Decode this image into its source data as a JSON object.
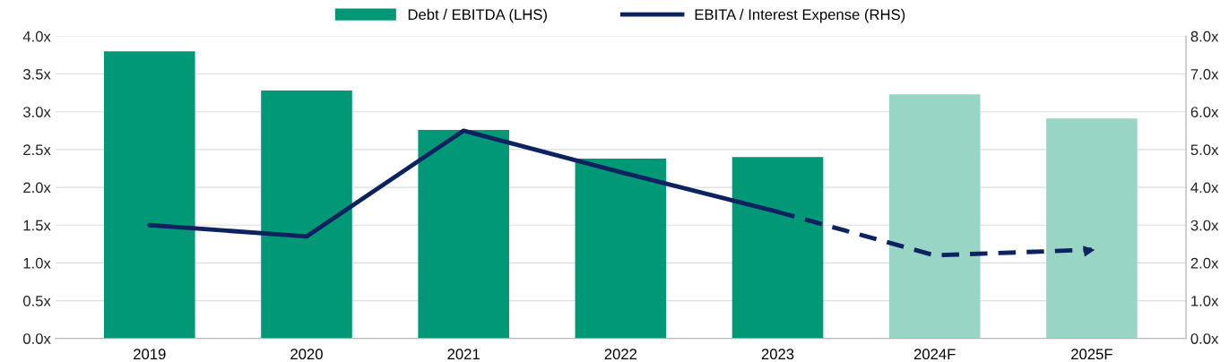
{
  "chart_data": {
    "type": "bar",
    "categories": [
      "2019",
      "2020",
      "2021",
      "2022",
      "2023",
      "2024F",
      "2025F"
    ],
    "series": [
      {
        "name": "Debt / EBITDA (LHS)",
        "color": "#009876",
        "colors": [
          "#009876",
          "#009876",
          "#009876",
          "#009876",
          "#009876",
          "#99d5c5",
          "#99d5c5"
        ],
        "values": [
          3.8,
          3.28,
          2.76,
          2.38,
          2.4,
          3.23,
          2.91
        ]
      },
      {
        "name": "EBITA / Interest Expense (RHS)",
        "type": "line",
        "axis": "y2",
        "color": "#0d2360",
        "line_style": "solid",
        "values": [
          3.0,
          2.7,
          5.5,
          4.4,
          3.35,
          null,
          null
        ]
      },
      {
        "type": "line",
        "axis": "y2",
        "color": "#0d2360",
        "line_style": "dashed",
        "values": [
          null,
          null,
          null,
          null,
          3.35,
          2.2,
          2.35
        ]
      }
    ],
    "ylim": [
      0,
      4
    ],
    "yticks": [
      {
        "value": 0,
        "label": "0.0x"
      },
      {
        "value": 0.5,
        "label": "0.5x"
      },
      {
        "value": 1,
        "label": "1.0x"
      },
      {
        "value": 1.5,
        "label": "1.5x"
      },
      {
        "value": 2,
        "label": "2.0x"
      },
      {
        "value": 2.5,
        "label": "2.5x"
      },
      {
        "value": 3,
        "label": "3.0x"
      },
      {
        "value": 3.5,
        "label": "3.5x"
      },
      {
        "value": 4,
        "label": "4.0x"
      }
    ],
    "y2lim": [
      0,
      8
    ],
    "y2ticks": [
      {
        "value": 0,
        "label": "0.0x"
      },
      {
        "value": 1,
        "label": "1.0x"
      },
      {
        "value": 2,
        "label": "2.0x"
      },
      {
        "value": 3,
        "label": "3.0x"
      },
      {
        "value": 4,
        "label": "4.0x"
      },
      {
        "value": 5,
        "label": "5.0x"
      },
      {
        "value": 6,
        "label": "6.0x"
      },
      {
        "value": 7,
        "label": "7.0x"
      },
      {
        "value": 8,
        "label": "8.0x"
      }
    ],
    "grid": "y",
    "legend": "top"
  }
}
